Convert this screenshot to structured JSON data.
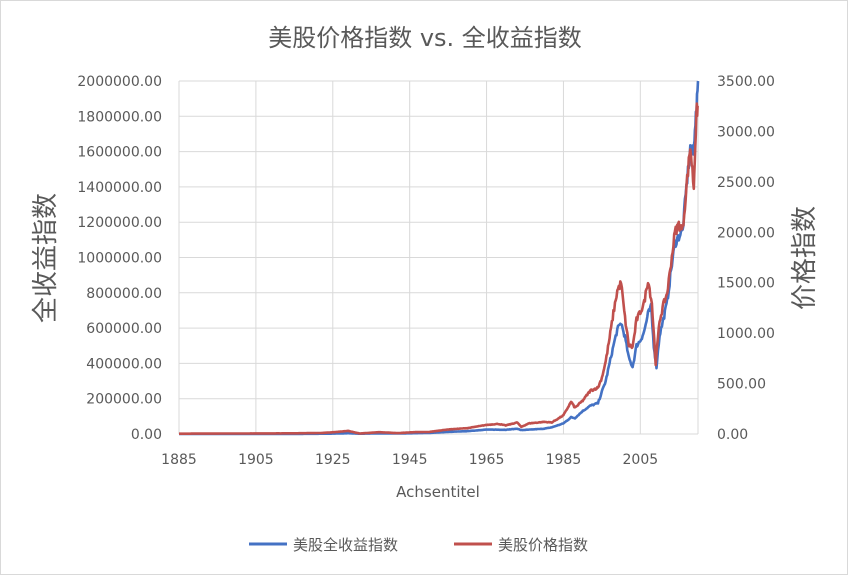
{
  "chart_data": {
    "type": "line",
    "title": "美股价格指数 vs. 全收益指数",
    "xlabel": "Achsentitel",
    "ylabel_left": "全收益指数",
    "ylabel_right": "价格指数",
    "xlim": [
      1885,
      2020
    ],
    "x_ticks": [
      "1885",
      "1905",
      "1925",
      "1945",
      "1965",
      "1985",
      "2005"
    ],
    "x_tick_values": [
      1885,
      1905,
      1925,
      1945,
      1965,
      1985,
      2005
    ],
    "ylim_left": [
      0,
      2000000
    ],
    "ylim_right": [
      0,
      3500
    ],
    "y_ticks_left": [
      "0.00",
      "200000.00",
      "400000.00",
      "600000.00",
      "800000.00",
      "1000000.00",
      "1200000.00",
      "1400000.00",
      "1600000.00",
      "1800000.00",
      "2000000.00"
    ],
    "y_tick_values_left": [
      0,
      200000,
      400000,
      600000,
      800000,
      1000000,
      1200000,
      1400000,
      1600000,
      1800000,
      2000000
    ],
    "y_ticks_right": [
      "0.00",
      "500.00",
      "1000.00",
      "1500.00",
      "2000.00",
      "2500.00",
      "3000.00",
      "3500.00"
    ],
    "y_tick_values_right": [
      0,
      500,
      1000,
      1500,
      2000,
      2500,
      3000,
      3500
    ],
    "grid": true,
    "legend_position": "bottom",
    "series": [
      {
        "name": "美股全收益指数",
        "axis": "left",
        "color": "#4472c4",
        "points": [
          [
            1885,
            0
          ],
          [
            1900,
            200
          ],
          [
            1915,
            500
          ],
          [
            1925,
            2000
          ],
          [
            1929,
            4500
          ],
          [
            1932,
            1500
          ],
          [
            1937,
            3500
          ],
          [
            1942,
            2800
          ],
          [
            1950,
            6000
          ],
          [
            1955,
            12000
          ],
          [
            1960,
            16000
          ],
          [
            1965,
            25000
          ],
          [
            1970,
            24000
          ],
          [
            1973,
            30000
          ],
          [
            1974,
            22000
          ],
          [
            1980,
            30000
          ],
          [
            1982,
            38000
          ],
          [
            1985,
            60000
          ],
          [
            1987,
            95000
          ],
          [
            1988,
            90000
          ],
          [
            1990,
            130000
          ],
          [
            1992,
            160000
          ],
          [
            1994,
            175000
          ],
          [
            1995,
            240000
          ],
          [
            1996,
            300000
          ],
          [
            1997,
            400000
          ],
          [
            1998,
            500000
          ],
          [
            1999,
            590000
          ],
          [
            2000,
            630000
          ],
          [
            2001,
            550000
          ],
          [
            2002,
            430000
          ],
          [
            2003,
            380000
          ],
          [
            2004,
            500000
          ],
          [
            2005,
            530000
          ],
          [
            2006,
            580000
          ],
          [
            2007,
            680000
          ],
          [
            2007.8,
            720000
          ],
          [
            2008.5,
            500000
          ],
          [
            2009.2,
            380000
          ],
          [
            2010,
            560000
          ],
          [
            2011,
            650000
          ],
          [
            2012,
            750000
          ],
          [
            2013,
            930000
          ],
          [
            2014,
            1080000
          ],
          [
            2015,
            1120000
          ],
          [
            2016,
            1150000
          ],
          [
            2017,
            1400000
          ],
          [
            2018,
            1620000
          ],
          [
            2018.9,
            1580000
          ],
          [
            2019.2,
            1750000
          ],
          [
            2019.6,
            1820000
          ],
          [
            2020,
            2000000
          ]
        ]
      },
      {
        "name": "美股价格指数",
        "axis": "right",
        "color": "#c0504d",
        "points": [
          [
            1885,
            3
          ],
          [
            1900,
            5
          ],
          [
            1915,
            7
          ],
          [
            1922,
            10
          ],
          [
            1926,
            20
          ],
          [
            1929,
            31
          ],
          [
            1932,
            5
          ],
          [
            1937,
            18
          ],
          [
            1942,
            9
          ],
          [
            1946,
            18
          ],
          [
            1950,
            20
          ],
          [
            1955,
            45
          ],
          [
            1960,
            58
          ],
          [
            1965,
            90
          ],
          [
            1968,
            100
          ],
          [
            1970,
            85
          ],
          [
            1973,
            115
          ],
          [
            1974,
            70
          ],
          [
            1976,
            105
          ],
          [
            1980,
            120
          ],
          [
            1982,
            115
          ],
          [
            1985,
            185
          ],
          [
            1987,
            320
          ],
          [
            1988,
            260
          ],
          [
            1990,
            330
          ],
          [
            1992,
            430
          ],
          [
            1994,
            460
          ],
          [
            1995,
            560
          ],
          [
            1996,
            720
          ],
          [
            1997,
            950
          ],
          [
            1998,
            1200
          ],
          [
            1999,
            1420
          ],
          [
            2000,
            1500
          ],
          [
            2001,
            1150
          ],
          [
            2002,
            880
          ],
          [
            2003,
            860
          ],
          [
            2004,
            1130
          ],
          [
            2005,
            1210
          ],
          [
            2006,
            1300
          ],
          [
            2007,
            1530
          ],
          [
            2008,
            1300
          ],
          [
            2009,
            700
          ],
          [
            2010,
            1120
          ],
          [
            2011,
            1280
          ],
          [
            2012,
            1400
          ],
          [
            2013,
            1700
          ],
          [
            2014,
            2000
          ],
          [
            2015,
            2080
          ],
          [
            2016,
            2020
          ],
          [
            2017,
            2450
          ],
          [
            2018,
            2850
          ],
          [
            2018.9,
            2450
          ],
          [
            2019.3,
            2900
          ],
          [
            2019.7,
            3200
          ],
          [
            2020,
            3250
          ]
        ]
      }
    ]
  }
}
